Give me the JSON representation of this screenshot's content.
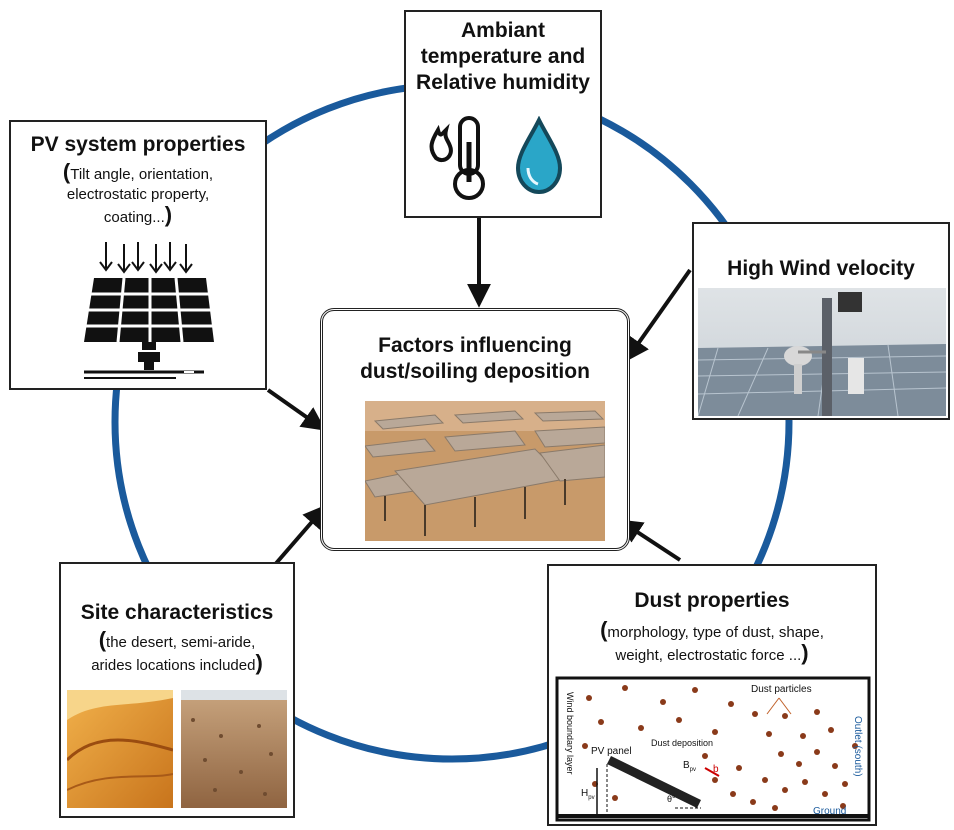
{
  "center": {
    "title_line1": "Factors influencing",
    "title_line2": "dust/soiling deposition"
  },
  "ambient": {
    "title_line1": "Ambiant",
    "title_line2": "temperature and",
    "title_line3": "Relative humidity"
  },
  "pv": {
    "title": "PV system properties",
    "sub_line1": "Tilt angle, orientation,",
    "sub_line2": "electrostatic property,",
    "sub_line3": "coating..."
  },
  "wind": {
    "title": "High Wind velocity"
  },
  "site": {
    "title": "Site characteristics",
    "sub_line1": "the desert, semi-aride,",
    "sub_line2": "arides locations included"
  },
  "dust": {
    "title": "Dust properties",
    "sub_line1": "morphology, type of dust, shape,",
    "sub_line2": "weight, electrostatic force ...",
    "schematic": {
      "wind_layer": "Wind boundary layer",
      "particles": "Dust particles",
      "outlet": "Outlet (south)",
      "panel": "PV panel",
      "deposition": "Dust deposition",
      "ground": "Ground",
      "h_label": "H",
      "h_sub": "pv",
      "b_label": "B",
      "b_sub": "pv",
      "small_b": "b",
      "theta": "θ°"
    }
  },
  "colors": {
    "ring": "#1a5a9c",
    "arrow": "#111111",
    "sand": "#c89a6a",
    "dust": "#8a3a1a"
  }
}
